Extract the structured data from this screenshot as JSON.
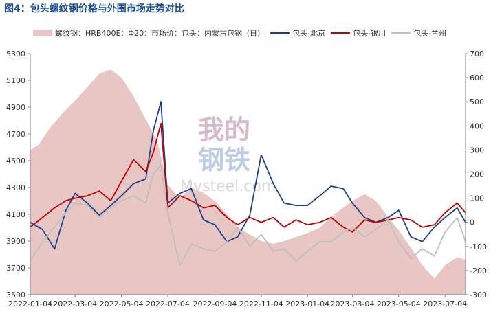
{
  "title": "图4：包头螺纹钢价格与外围市场走势对比",
  "watermark": {
    "line1": "我的",
    "line2": "钢铁",
    "site": "Mysteel.com"
  },
  "chart_data": {
    "type": "line",
    "x_ticks": [
      "2022-01-04",
      "2022-03-04",
      "2022-05-04",
      "2022-07-04",
      "2022-09-04",
      "2022-11-04",
      "2023-01-04",
      "2023-03-04",
      "2023-05-04",
      "2023-07-04"
    ],
    "x_range": [
      "2022-01-04",
      "2023-07-31"
    ],
    "y_left": {
      "range": [
        3500,
        5300
      ],
      "ticks": [
        3500,
        3700,
        3900,
        4100,
        4300,
        4500,
        4700,
        4900,
        5100,
        5300
      ]
    },
    "y_right": {
      "range": [
        -300,
        700
      ],
      "ticks": [
        -300,
        -200,
        -100,
        0,
        100,
        200,
        300,
        400,
        500,
        600,
        700
      ]
    },
    "grid": false,
    "legend_position": "top",
    "series": [
      {
        "name": "螺纹钢：HRB400E：Φ20：市场价：包头：内蒙古包钢（日）",
        "type": "area",
        "axis": "left",
        "color": "#e8c6c4",
        "x": [
          "2022-01-04",
          "2022-01-15",
          "2022-02-01",
          "2022-02-20",
          "2022-03-04",
          "2022-03-20",
          "2022-04-05",
          "2022-04-20",
          "2022-05-04",
          "2022-05-20",
          "2022-06-04",
          "2022-06-20",
          "2022-07-04",
          "2022-07-20",
          "2022-08-04",
          "2022-08-20",
          "2022-09-04",
          "2022-09-20",
          "2022-10-04",
          "2022-10-20",
          "2022-11-04",
          "2022-11-20",
          "2022-12-04",
          "2022-12-20",
          "2023-01-04",
          "2023-01-20",
          "2023-02-04",
          "2023-02-20",
          "2023-03-04",
          "2023-03-20",
          "2023-04-04",
          "2023-04-20",
          "2023-05-04",
          "2023-05-20",
          "2023-06-04",
          "2023-06-20",
          "2023-07-04",
          "2023-07-20",
          "2023-07-31"
        ],
        "values": [
          4580,
          4620,
          4760,
          4880,
          4950,
          5050,
          5150,
          5180,
          5120,
          4980,
          4820,
          4650,
          4320,
          4220,
          4300,
          4260,
          4200,
          4100,
          4000,
          3950,
          3900,
          3880,
          3900,
          3930,
          3960,
          4000,
          4080,
          4150,
          4200,
          4250,
          4200,
          4080,
          3980,
          3850,
          3720,
          3620,
          3720,
          3780,
          3760
        ]
      },
      {
        "name": "包头-北京",
        "type": "line",
        "axis": "right",
        "color": "#1b3f8b",
        "x": [
          "2022-01-04",
          "2022-01-20",
          "2022-02-05",
          "2022-02-20",
          "2022-03-04",
          "2022-03-20",
          "2022-04-05",
          "2022-04-20",
          "2022-05-04",
          "2022-05-20",
          "2022-06-05",
          "2022-06-15",
          "2022-06-25",
          "2022-07-04",
          "2022-07-20",
          "2022-08-04",
          "2022-08-20",
          "2022-09-04",
          "2022-09-20",
          "2022-10-04",
          "2022-10-20",
          "2022-11-04",
          "2022-11-20",
          "2022-12-04",
          "2022-12-20",
          "2023-01-04",
          "2023-01-20",
          "2023-02-04",
          "2023-02-20",
          "2023-03-04",
          "2023-03-20",
          "2023-04-04",
          "2023-04-20",
          "2023-05-04",
          "2023-05-20",
          "2023-06-04",
          "2023-06-20",
          "2023-07-04",
          "2023-07-20",
          "2023-07-31"
        ],
        "values": [
          0,
          -30,
          -110,
          50,
          120,
          80,
          30,
          70,
          110,
          160,
          180,
          380,
          500,
          80,
          120,
          140,
          10,
          -10,
          -80,
          -60,
          30,
          280,
          160,
          80,
          70,
          70,
          110,
          150,
          140,
          80,
          20,
          0,
          20,
          50,
          -60,
          -80,
          -20,
          20,
          60,
          0
        ]
      },
      {
        "name": "包头-银川",
        "type": "line",
        "axis": "right",
        "color": "#c00000",
        "x": [
          "2022-01-04",
          "2022-01-20",
          "2022-02-05",
          "2022-02-20",
          "2022-03-04",
          "2022-03-20",
          "2022-04-05",
          "2022-04-20",
          "2022-05-04",
          "2022-05-20",
          "2022-06-05",
          "2022-06-15",
          "2022-06-25",
          "2022-07-04",
          "2022-07-20",
          "2022-08-04",
          "2022-08-20",
          "2022-09-04",
          "2022-09-20",
          "2022-10-04",
          "2022-10-20",
          "2022-11-04",
          "2022-11-20",
          "2022-12-04",
          "2022-12-20",
          "2023-01-04",
          "2023-01-20",
          "2023-02-04",
          "2023-02-20",
          "2023-03-04",
          "2023-03-20",
          "2023-04-04",
          "2023-04-20",
          "2023-05-04",
          "2023-05-20",
          "2023-06-04",
          "2023-06-20",
          "2023-07-04",
          "2023-07-20",
          "2023-07-31"
        ],
        "values": [
          -20,
          20,
          60,
          90,
          100,
          110,
          130,
          90,
          170,
          260,
          210,
          290,
          410,
          60,
          110,
          90,
          60,
          70,
          20,
          -10,
          20,
          0,
          20,
          -20,
          10,
          -10,
          0,
          20,
          -20,
          -40,
          10,
          0,
          10,
          20,
          10,
          -20,
          -10,
          40,
          80,
          40
        ]
      },
      {
        "name": "包头-兰州",
        "type": "line",
        "axis": "right",
        "color": "#bfbfbf",
        "x": [
          "2022-01-04",
          "2022-01-20",
          "2022-02-05",
          "2022-02-20",
          "2022-03-04",
          "2022-03-20",
          "2022-04-05",
          "2022-04-20",
          "2022-05-04",
          "2022-05-20",
          "2022-06-05",
          "2022-06-15",
          "2022-06-25",
          "2022-07-04",
          "2022-07-20",
          "2022-08-04",
          "2022-08-20",
          "2022-09-04",
          "2022-09-20",
          "2022-10-04",
          "2022-10-20",
          "2022-11-04",
          "2022-11-20",
          "2022-12-04",
          "2022-12-20",
          "2023-01-04",
          "2023-01-20",
          "2023-02-04",
          "2023-02-20",
          "2023-03-04",
          "2023-03-20",
          "2023-04-04",
          "2023-04-20",
          "2023-05-04",
          "2023-05-20",
          "2023-06-04",
          "2023-06-20",
          "2023-07-04",
          "2023-07-20",
          "2023-07-31"
        ],
        "values": [
          -160,
          -80,
          -20,
          40,
          80,
          70,
          20,
          60,
          90,
          110,
          80,
          200,
          240,
          40,
          -180,
          -90,
          -110,
          -120,
          -80,
          -20,
          -100,
          -50,
          -120,
          -110,
          -160,
          -120,
          -80,
          -80,
          -40,
          -20,
          -60,
          -30,
          10,
          -80,
          -150,
          -110,
          -140,
          -40,
          20,
          -80
        ]
      }
    ]
  }
}
